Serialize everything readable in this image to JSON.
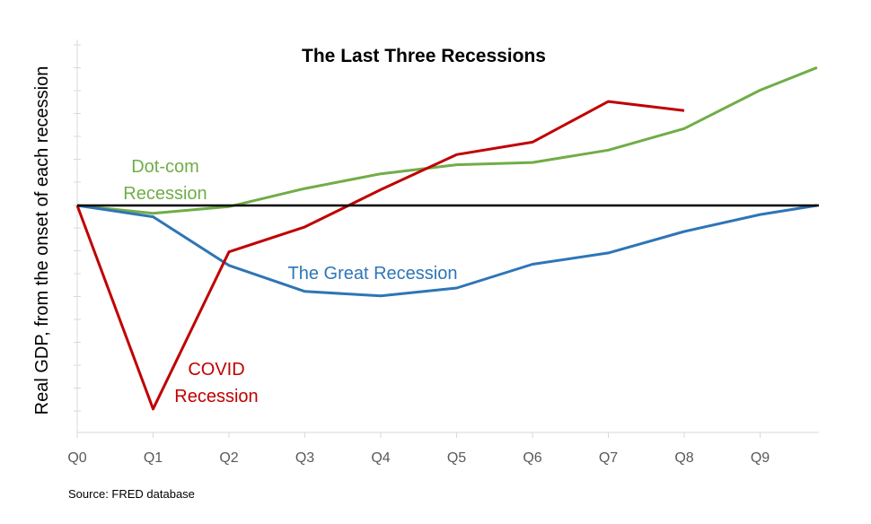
{
  "chart_data": {
    "type": "line",
    "title": "The Last Three Recessions",
    "ylabel": "Real GDP, from the onset of each recession",
    "xlabel": "",
    "categories": [
      "Q0",
      "Q1",
      "Q2",
      "Q3",
      "Q4",
      "Q5",
      "Q6",
      "Q7",
      "Q8",
      "Q9"
    ],
    "ylim": [
      -10,
      7
    ],
    "series": [
      {
        "name": "Dot-com Recession",
        "label_lines": [
          "Dot-com",
          "Recession"
        ],
        "color": "#70AD47",
        "x": [
          0,
          1,
          2,
          3,
          4,
          5,
          6,
          7,
          8,
          9,
          9.75
        ],
        "values": [
          0,
          -0.35,
          -0.05,
          0.75,
          1.4,
          1.8,
          1.9,
          2.45,
          3.4,
          5.1,
          6.1
        ]
      },
      {
        "name": "The Great Recession",
        "label_lines": [
          "The Great Recession"
        ],
        "color": "#2E75B6",
        "x": [
          0,
          1,
          2,
          3,
          4,
          5,
          6,
          7,
          8,
          9,
          9.75
        ],
        "values": [
          0,
          -0.5,
          -2.65,
          -3.8,
          -4.0,
          -3.65,
          -2.6,
          -2.1,
          -1.15,
          -0.4,
          0
        ]
      },
      {
        "name": "COVID Recession",
        "label_lines": [
          "COVID",
          "Recession"
        ],
        "color": "#C00000",
        "x": [
          0,
          1,
          2,
          3,
          4,
          5,
          6,
          7,
          8
        ],
        "values": [
          0,
          -9.0,
          -2.05,
          -0.95,
          0.7,
          2.25,
          2.8,
          4.6,
          4.2
        ]
      }
    ],
    "baseline": 0,
    "source": "Source: FRED database"
  }
}
